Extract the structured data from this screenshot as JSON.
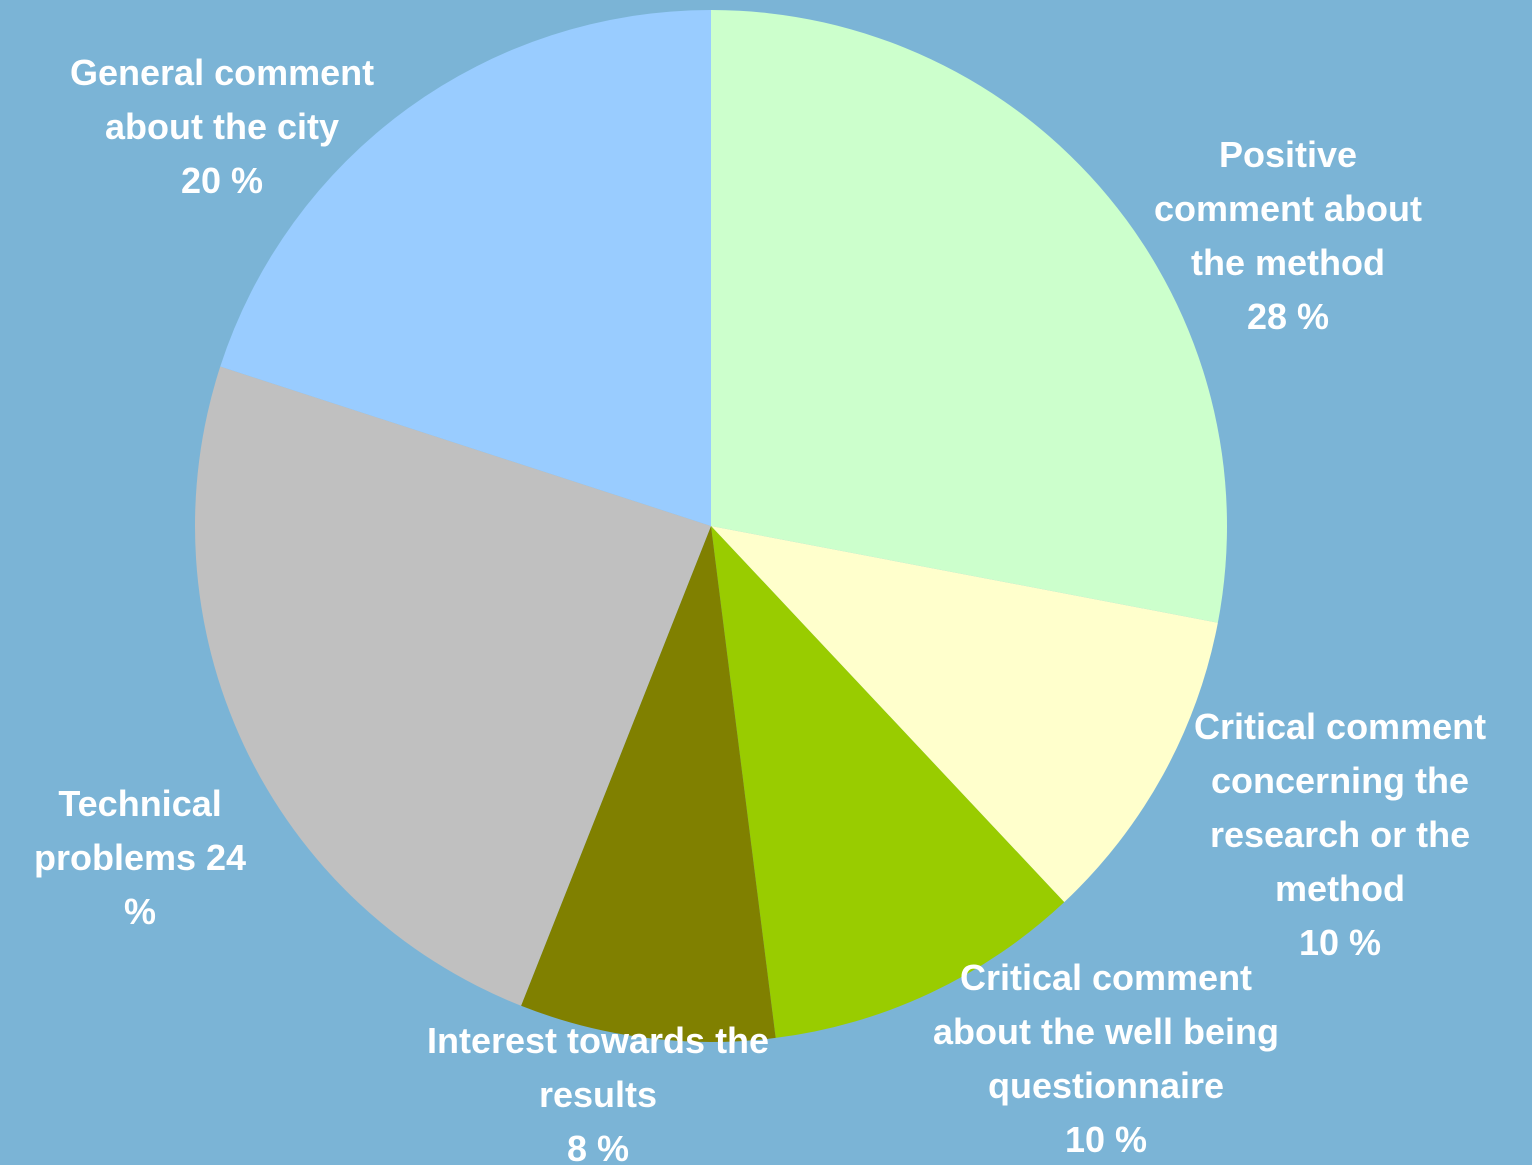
{
  "chart_data": {
    "type": "pie",
    "start_angle_deg": 0,
    "direction": "clockwise",
    "slices": [
      {
        "name": "Positive comment about the method",
        "value": 28,
        "color": "#ccffcc",
        "label_lines": [
          "Positive",
          "comment about",
          "the method",
          "28 %"
        ]
      },
      {
        "name": "Critical comment concerning the research or the method",
        "value": 10,
        "color": "#ffffcc",
        "label_lines": [
          "Critical comment",
          "concerning the",
          "research or the",
          "method",
          "10 %"
        ]
      },
      {
        "name": "Critical comment about the well being questionnaire",
        "value": 10,
        "color": "#99cc00",
        "label_lines": [
          "Critical comment",
          "about the well being",
          "questionnaire",
          "10 %"
        ]
      },
      {
        "name": "Interest towards the results",
        "value": 8,
        "color": "#808000",
        "label_lines": [
          "Interest towards the",
          "results",
          "8 %"
        ]
      },
      {
        "name": "Technical problems",
        "value": 24,
        "color": "#c0c0c0",
        "label_lines": [
          "Technical",
          "problems 24",
          "%"
        ]
      },
      {
        "name": "General comment about the city",
        "value": 20,
        "color": "#99ccff",
        "label_lines": [
          "General comment",
          "about the city",
          "20 %"
        ]
      }
    ]
  },
  "colors": {
    "background": "#7bb4d6",
    "label_text": "#ffffff"
  }
}
